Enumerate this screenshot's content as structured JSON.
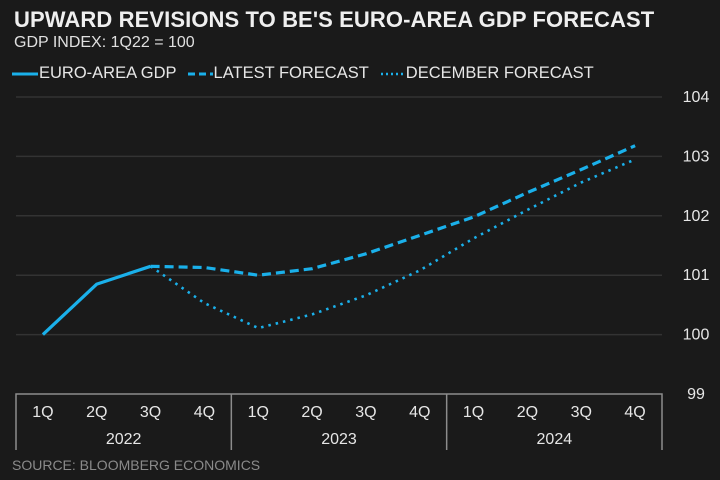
{
  "colors": {
    "background": "#1a1a1a",
    "series": "#1ab0ea",
    "grid": "#333333",
    "axis_box": "#8c8c8c",
    "source_text": "#8a8a8a"
  },
  "legend": [
    {
      "label": "EURO-AREA GDP",
      "style": "solid"
    },
    {
      "label": "LATEST FORECAST",
      "style": "dashed"
    },
    {
      "label": "DECEMBER FORECAST",
      "style": "dotted"
    }
  ],
  "source": "SOURCE: BLOOMBERG ECONOMICS",
  "chart_data": {
    "type": "line",
    "title": "UPWARD REVISIONS TO BE'S EURO-AREA GDP FORECAST",
    "subtitle": "GDP INDEX: 1Q22 = 100",
    "xlabel": "",
    "ylabel": "",
    "x": [
      "1Q",
      "2Q",
      "3Q",
      "4Q",
      "1Q",
      "2Q",
      "3Q",
      "4Q",
      "1Q",
      "2Q",
      "3Q",
      "4Q"
    ],
    "year_groups": [
      {
        "label": "2022",
        "quarters": 4
      },
      {
        "label": "2023",
        "quarters": 4
      },
      {
        "label": "2024",
        "quarters": 4
      }
    ],
    "ylim": [
      99,
      104
    ],
    "yticks": [
      99,
      100,
      101,
      102,
      103,
      104
    ],
    "grid": true,
    "y_axis_side": "right",
    "legend_position": "top-left",
    "series": [
      {
        "name": "EURO-AREA GDP",
        "style": "solid",
        "values": [
          100.0,
          100.85,
          101.15,
          null,
          null,
          null,
          null,
          null,
          null,
          null,
          null,
          null
        ]
      },
      {
        "name": "LATEST FORECAST",
        "style": "dashed",
        "values": [
          null,
          null,
          101.15,
          101.13,
          101.0,
          101.11,
          101.36,
          101.67,
          101.98,
          102.39,
          102.78,
          103.18
        ]
      },
      {
        "name": "DECEMBER FORECAST",
        "style": "dotted",
        "values": [
          null,
          null,
          101.15,
          100.53,
          100.11,
          100.34,
          100.66,
          101.08,
          101.62,
          102.1,
          102.56,
          102.95
        ]
      }
    ]
  }
}
